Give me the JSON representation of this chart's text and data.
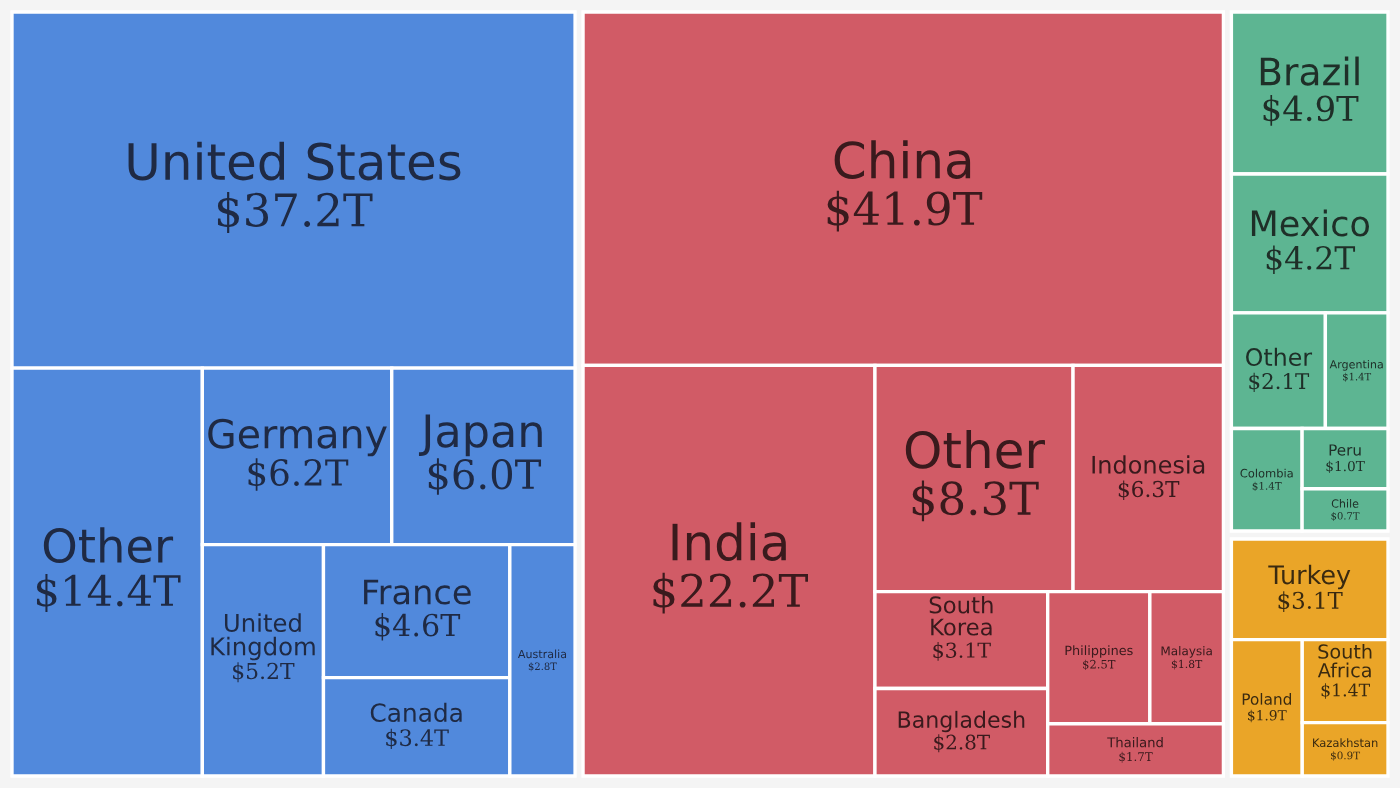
{
  "chart_data": {
    "type": "other",
    "categories": [
      "United States",
      "Other",
      "Germany",
      "Japan",
      "United Kingdom",
      "France",
      "Canada",
      "Australia",
      "China",
      "India",
      "Other",
      "Indonesia",
      "South Korea",
      "Bangladesh",
      "Philippines",
      "Malaysia",
      "Thailand",
      "Brazil",
      "Mexico",
      "Other",
      "Argentina",
      "Colombia",
      "Peru",
      "Chile",
      "Turkey",
      "Poland",
      "South Africa",
      "Kazakhstan"
    ],
    "values": [
      37.2,
      14.4,
      6.2,
      6.0,
      5.2,
      4.6,
      3.4,
      2.8,
      41.9,
      22.2,
      8.3,
      6.3,
      3.1,
      2.8,
      2.5,
      1.8,
      1.7,
      4.9,
      4.2,
      2.1,
      1.4,
      1.4,
      1.0,
      0.7,
      3.1,
      1.9,
      1.4,
      0.9
    ],
    "value_labels": [
      "$37.2T",
      "$14.4T",
      "$6.2T",
      "$6.0T",
      "$5.2T",
      "$4.6T",
      "$3.4T",
      "$2.8T",
      "$41.9T",
      "$22.2T",
      "$8.3T",
      "$6.3T",
      "$3.1T",
      "$2.8T",
      "$2.5T",
      "$1.8T",
      "$1.7T",
      "$4.9T",
      "$4.2T",
      "$2.1T",
      "$1.4T",
      "$1.4T",
      "$1.0T",
      "$0.7T",
      "$3.1T",
      "$1.9T",
      "$1.4T",
      "$0.9T"
    ],
    "colors": [
      "#5189dc",
      "#5189dc",
      "#5189dc",
      "#5189dc",
      "#5189dc",
      "#5189dc",
      "#5189dc",
      "#5189dc",
      "#d15b66",
      "#d15b66",
      "#d15b66",
      "#d15b66",
      "#d15b66",
      "#d15b66",
      "#d15b66",
      "#d15b66",
      "#d15b66",
      "#5db592",
      "#5db592",
      "#5db592",
      "#5db592",
      "#5db592",
      "#5db592",
      "#5db592",
      "#eaa528",
      "#eaa528",
      "#eaa528",
      "#eaa528"
    ]
  }
}
